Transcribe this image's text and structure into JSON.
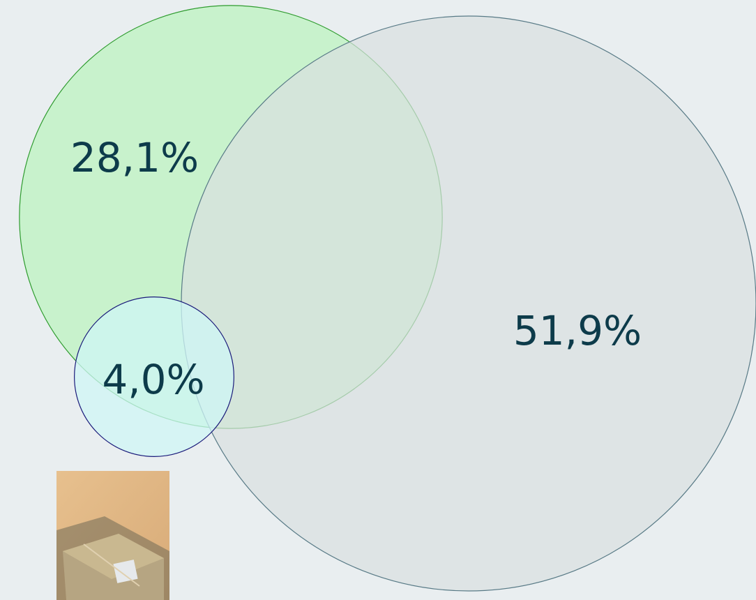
{
  "chart_data": {
    "type": "venn",
    "values": [
      28.1,
      51.9,
      4.0
    ],
    "value_labels": [
      "28,1%",
      "51,9%",
      "4,0%"
    ],
    "colors": [
      "#c8f2cc",
      "#d8e0e0",
      "#cff6f6"
    ],
    "stroke_colors": [
      "#2e9b2e",
      "#587a86",
      "#1a1a7a"
    ]
  }
}
